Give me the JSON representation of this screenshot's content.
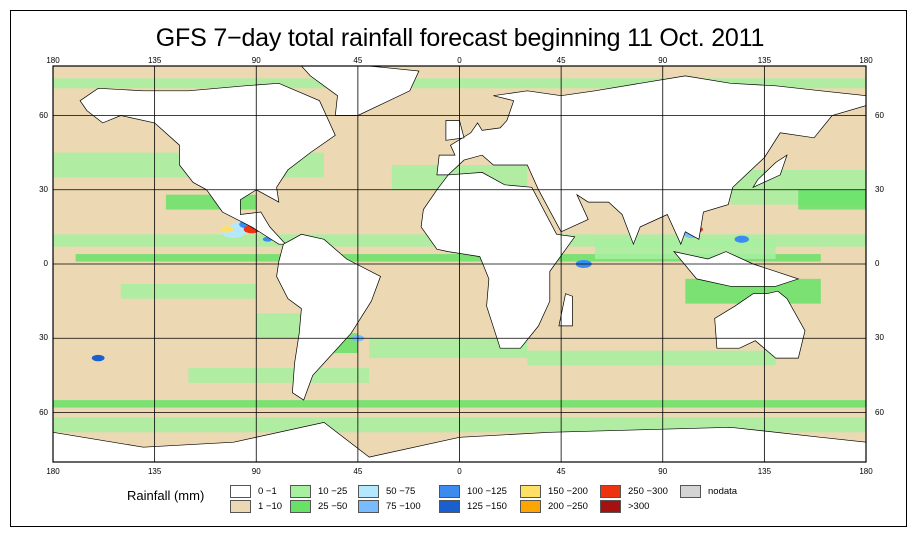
{
  "title": "GFS 7−day total rainfall forecast beginning 11 Oct. 2011",
  "x_ticks": [
    "180",
    "135",
    "90",
    "45",
    "0",
    "45",
    "90",
    "135",
    "180"
  ],
  "y_ticks": [
    "60",
    "30",
    "0",
    "30",
    "60"
  ],
  "legend": {
    "title": "Rainfall (mm)",
    "items": [
      {
        "label": "0 −1",
        "color": "#ffffff"
      },
      {
        "label": "1 −10",
        "color": "#ecd9b3"
      },
      {
        "label": "10 −25",
        "color": "#a6f0a0"
      },
      {
        "label": "25 −50",
        "color": "#66e266"
      },
      {
        "label": "50 −75",
        "color": "#b4e8ff"
      },
      {
        "label": "75 −100",
        "color": "#78bcff"
      },
      {
        "label": "100 −125",
        "color": "#3c8cf0"
      },
      {
        "label": "125 −150",
        "color": "#1a5fd0"
      },
      {
        "label": "150 −200",
        "color": "#ffe066"
      },
      {
        "label": "200 −250",
        "color": "#ffa500"
      },
      {
        "label": "250 −300",
        "color": "#ee3311"
      },
      {
        "label": ">300",
        "color": "#a51010"
      },
      {
        "label": "nodata",
        "color": "#d4d4d4"
      }
    ]
  }
}
